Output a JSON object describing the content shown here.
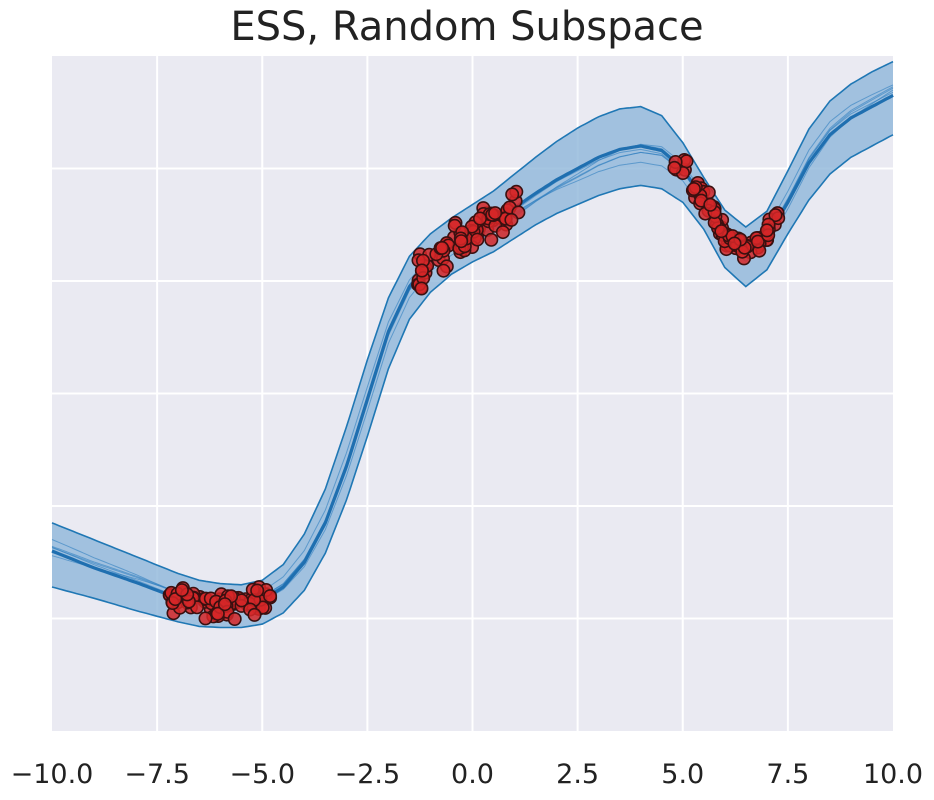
{
  "chart_data": {
    "type": "line",
    "title": "ESS, Random Subspace",
    "xlabel": "",
    "ylabel": "",
    "xlim": [
      -10,
      10
    ],
    "ylim": [
      -3.0,
      3.0
    ],
    "x_ticks": [
      -10,
      -7.5,
      -5,
      -2.5,
      0,
      2.5,
      5,
      7.5,
      10
    ],
    "x_tick_labels": [
      "−10.0",
      "−7.5",
      "−5.0",
      "−2.5",
      "0.0",
      "2.5",
      "5.0",
      "7.5",
      "10.0"
    ],
    "y_gridlines": [
      -2,
      -1,
      0,
      1,
      2
    ],
    "y_tick_labels_shown": false,
    "grid": true,
    "background_color": "#eaeaf2",
    "series": [
      {
        "kind": "mean",
        "color": "#1f77b4",
        "x": [
          -10,
          -9,
          -8,
          -7,
          -6.5,
          -6,
          -5.5,
          -5,
          -4.5,
          -4,
          -3.5,
          -3,
          -2.5,
          -2,
          -1.5,
          -1,
          -0.5,
          0,
          0.5,
          1,
          1.5,
          2,
          2.5,
          3,
          3.5,
          4,
          4.5,
          5,
          5.5,
          6,
          6.5,
          7,
          7.5,
          8,
          8.5,
          9,
          9.5,
          10
        ],
        "y": [
          -1.4,
          -1.55,
          -1.68,
          -1.82,
          -1.87,
          -1.89,
          -1.89,
          -1.84,
          -1.72,
          -1.5,
          -1.15,
          -0.65,
          -0.05,
          0.55,
          0.95,
          1.18,
          1.32,
          1.42,
          1.52,
          1.65,
          1.78,
          1.9,
          2.0,
          2.1,
          2.17,
          2.2,
          2.16,
          2.0,
          1.72,
          1.42,
          1.26,
          1.38,
          1.7,
          2.05,
          2.3,
          2.45,
          2.55,
          2.65
        ]
      },
      {
        "kind": "confidence_band_upper",
        "color": "#1f77b4",
        "x": [
          -10,
          -9,
          -8,
          -7,
          -6.5,
          -6,
          -5.5,
          -5,
          -4.5,
          -4,
          -3.5,
          -3,
          -2.5,
          -2,
          -1.5,
          -1,
          -0.5,
          0,
          0.5,
          1,
          1.5,
          2,
          2.5,
          3,
          3.5,
          4,
          4.5,
          5,
          5.5,
          6,
          6.5,
          7,
          7.5,
          8,
          8.5,
          9,
          9.5,
          10
        ],
        "y": [
          -1.15,
          -1.3,
          -1.45,
          -1.6,
          -1.66,
          -1.69,
          -1.7,
          -1.66,
          -1.52,
          -1.25,
          -0.85,
          -0.3,
          0.3,
          0.85,
          1.22,
          1.42,
          1.56,
          1.68,
          1.8,
          1.95,
          2.1,
          2.24,
          2.36,
          2.46,
          2.53,
          2.55,
          2.47,
          2.23,
          1.92,
          1.63,
          1.48,
          1.62,
          1.98,
          2.35,
          2.6,
          2.75,
          2.86,
          2.95
        ]
      },
      {
        "kind": "confidence_band_lower",
        "color": "#1f77b4",
        "x": [
          -10,
          -9,
          -8,
          -7,
          -6.5,
          -6,
          -5.5,
          -5,
          -4.5,
          -4,
          -3.5,
          -3,
          -2.5,
          -2,
          -1.5,
          -1,
          -0.5,
          0,
          0.5,
          1,
          1.5,
          2,
          2.5,
          3,
          3.5,
          4,
          4.5,
          5,
          5.5,
          6,
          6.5,
          7,
          7.5,
          8,
          8.5,
          9,
          9.5,
          10
        ],
        "y": [
          -1.72,
          -1.82,
          -1.93,
          -2.03,
          -2.07,
          -2.08,
          -2.08,
          -2.05,
          -1.95,
          -1.75,
          -1.42,
          -0.95,
          -0.38,
          0.22,
          0.66,
          0.9,
          1.06,
          1.17,
          1.26,
          1.38,
          1.5,
          1.6,
          1.68,
          1.76,
          1.82,
          1.85,
          1.82,
          1.7,
          1.46,
          1.12,
          0.95,
          1.1,
          1.42,
          1.72,
          1.95,
          2.1,
          2.2,
          2.3
        ]
      },
      {
        "kind": "observations",
        "color": "#d62728",
        "clusters": [
          {
            "x_range": [
              -7.2,
              -4.8
            ],
            "y_center": -1.89,
            "noise": 0.09,
            "count": 80
          },
          {
            "x_range": [
              -1.3,
              1.2
            ],
            "y_center": 1.42,
            "noise": 0.12,
            "count": 80
          },
          {
            "x_range": [
              4.8,
              7.3
            ],
            "y_center": 1.45,
            "noise": 0.1,
            "count": 80
          }
        ]
      }
    ]
  }
}
